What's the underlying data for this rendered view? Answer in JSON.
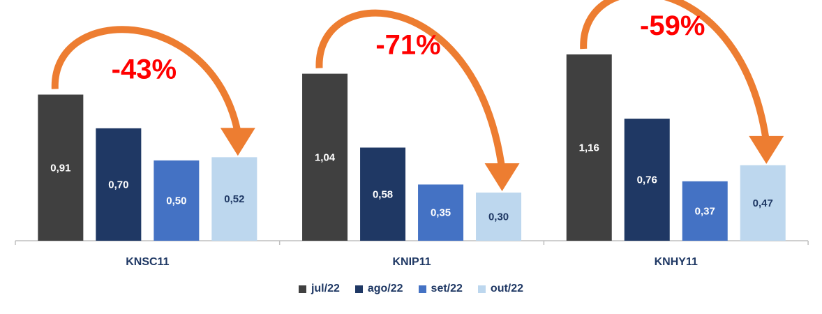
{
  "chart_data": {
    "type": "bar",
    "categories": [
      "KNSC11",
      "KNIP11",
      "KNHY11"
    ],
    "series": [
      {
        "name": "jul/22",
        "color": "#404040",
        "values": [
          0.91,
          1.04,
          1.16
        ],
        "labels": [
          "0,91",
          "1,04",
          "1,16"
        ],
        "label_color": "#ffffff"
      },
      {
        "name": "ago/22",
        "color": "#1f3864",
        "values": [
          0.7,
          0.58,
          0.76
        ],
        "labels": [
          "0,70",
          "0,58",
          "0,76"
        ],
        "label_color": "#ffffff"
      },
      {
        "name": "set/22",
        "color": "#4472c4",
        "values": [
          0.5,
          0.35,
          0.37
        ],
        "labels": [
          "0,50",
          "0,35",
          "0,37"
        ],
        "label_color": "#ffffff"
      },
      {
        "name": "out/22",
        "color": "#bdd7ee",
        "values": [
          0.52,
          0.3,
          0.47
        ],
        "labels": [
          "0,52",
          "0,30",
          "0,47"
        ],
        "label_color": "#1f3864"
      }
    ],
    "annotations": [
      "-43%",
      "-71%",
      "-59%"
    ],
    "ylim": [
      0,
      1.2
    ],
    "grid": false,
    "legend_position": "bottom",
    "arrow_color": "#ed7d31",
    "annotation_color": "#ff0000"
  }
}
